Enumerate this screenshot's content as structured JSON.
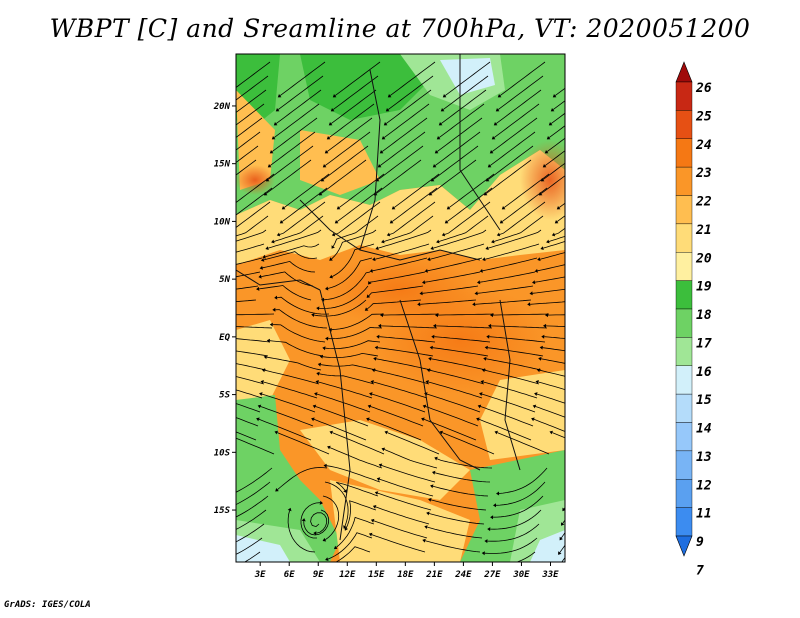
{
  "title": "WBPT [C] and Sreamline at 700hPa, VT: 2020051200",
  "credit": "GrADS: IGES/COLA",
  "map": {
    "lat_ticks": [
      "20N",
      "15N",
      "10N",
      "5N",
      "EQ",
      "5S",
      "10S",
      "15S"
    ],
    "lat_values": [
      20,
      15,
      10,
      5,
      0,
      -5,
      -10,
      -15
    ],
    "lon_ticks": [
      "3E",
      "6E",
      "9E",
      "12E",
      "15E",
      "18E",
      "21E",
      "24E",
      "27E",
      "30E",
      "33E"
    ],
    "lon_values": [
      3,
      6,
      9,
      12,
      15,
      18,
      21,
      24,
      27,
      30,
      33
    ],
    "lon_range": [
      0.5,
      34.5
    ],
    "lat_range": [
      -19.5,
      24.5
    ]
  },
  "colorbar": {
    "labels": [
      "7",
      "9",
      "11",
      "12",
      "13",
      "14",
      "15",
      "16",
      "17",
      "18",
      "19",
      "20",
      "21",
      "22",
      "23",
      "24",
      "25",
      "26"
    ],
    "colors": [
      "#1e6ee0",
      "#3c8cf0",
      "#5aa0f0",
      "#78b4f5",
      "#96c8fa",
      "#b4dcfa",
      "#d2f0fa",
      "#a0e696",
      "#6ed264",
      "#3cbe3c",
      "#fff0a0",
      "#ffdc78",
      "#ffbe50",
      "#fa9628",
      "#f57814",
      "#e65014",
      "#c82814",
      "#a00a0a"
    ]
  }
}
